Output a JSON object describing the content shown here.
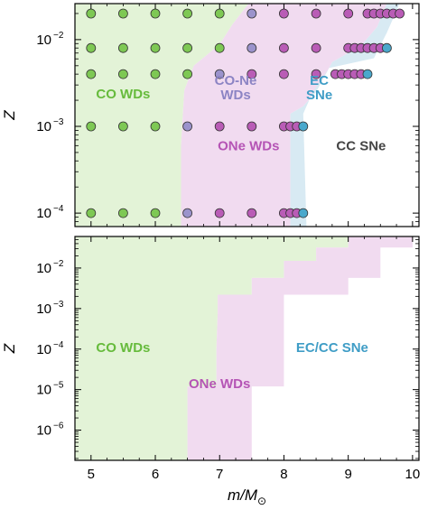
{
  "chart_data": [
    {
      "type": "scatter",
      "panel": "top",
      "ylabel": "Z",
      "yscale": "log",
      "xlim": [
        4.75,
        10.1
      ],
      "ylim": [
        7e-05,
        0.026
      ],
      "xticks": [
        5,
        6,
        7,
        8,
        9,
        10
      ],
      "yticks": [
        {
          "value": 0.0001,
          "base": "10",
          "exp": "−4"
        },
        {
          "value": 0.001,
          "base": "10",
          "exp": "−3"
        },
        {
          "value": 0.01,
          "base": "10",
          "exp": "−2"
        }
      ],
      "colors": {
        "co": "#7ec854",
        "cone": "#9b93cc",
        "one": "#b95cb6",
        "ec": "#4aa8cc",
        "co_region": "#e3f3d7",
        "one_region": "#f1dbf0",
        "ec_region": "#d8eaf3"
      },
      "regions": [
        {
          "key": "co",
          "label": "CO WDs",
          "color": "#66bb3c",
          "polygon": [
            [
              4.75,
              7e-05
            ],
            [
              6.4,
              7e-05
            ],
            [
              6.4,
              0.0006
            ],
            [
              6.45,
              0.0026
            ],
            [
              6.6,
              0.005
            ],
            [
              7.0,
              0.0088
            ],
            [
              7.2,
              0.015
            ],
            [
              7.45,
              0.026
            ],
            [
              4.75,
              0.026
            ]
          ]
        },
        {
          "key": "one",
          "label": "ONe WDs",
          "color": "#b554b5",
          "polygon": [
            [
              6.4,
              7e-05
            ],
            [
              8.1,
              7e-05
            ],
            [
              8.1,
              0.0014
            ],
            [
              8.3,
              0.0017
            ],
            [
              8.5,
              0.0025
            ],
            [
              8.75,
              0.0055
            ],
            [
              9.2,
              0.0085
            ],
            [
              9.45,
              0.014
            ],
            [
              9.6,
              0.026
            ],
            [
              7.45,
              0.026
            ],
            [
              7.2,
              0.015
            ],
            [
              7.0,
              0.0088
            ],
            [
              6.6,
              0.005
            ],
            [
              6.45,
              0.0026
            ],
            [
              6.4,
              0.0006
            ]
          ]
        },
        {
          "key": "ec",
          "label": "EC SNe",
          "color": "#3f9dc6",
          "polygon": [
            [
              8.1,
              7e-05
            ],
            [
              8.35,
              7e-05
            ],
            [
              8.3,
              0.0014
            ],
            [
              8.45,
              0.0025
            ],
            [
              8.7,
              0.0047
            ],
            [
              9.4,
              0.0061
            ],
            [
              9.6,
              0.012
            ],
            [
              9.8,
              0.026
            ],
            [
              9.6,
              0.026
            ],
            [
              9.45,
              0.014
            ],
            [
              9.2,
              0.0085
            ],
            [
              8.75,
              0.0055
            ],
            [
              8.5,
              0.0025
            ],
            [
              8.3,
              0.0017
            ],
            [
              8.1,
              0.0014
            ]
          ]
        }
      ],
      "labels": [
        {
          "text": "CO WDs",
          "color": "#66bb3c",
          "x": 5.5,
          "y": 0.0021
        },
        {
          "text": "CO-Ne",
          "color": "#8c84c4",
          "x": 7.25,
          "y": 0.003
        },
        {
          "text": "WDs",
          "color": "#8c84c4",
          "x": 7.25,
          "y": 0.00205
        },
        {
          "text": "ONe WDs",
          "color": "#b554b5",
          "x": 7.45,
          "y": 0.00053
        },
        {
          "text": "EC",
          "color": "#3f9dc6",
          "x": 8.55,
          "y": 0.003
        },
        {
          "text": "SNe",
          "color": "#3f9dc6",
          "x": 8.55,
          "y": 0.00205
        },
        {
          "text": "CC SNe",
          "color": "#444444",
          "x": 9.2,
          "y": 0.00053
        }
      ],
      "points": [
        {
          "y": 0.0001,
          "items": [
            [
              5.0,
              "co"
            ],
            [
              5.5,
              "co"
            ],
            [
              6.0,
              "co"
            ],
            [
              6.5,
              "cone"
            ],
            [
              7.0,
              "one"
            ],
            [
              7.5,
              "one"
            ],
            [
              8.0,
              "one"
            ],
            [
              8.1,
              "one"
            ],
            [
              8.2,
              "one"
            ],
            [
              8.3,
              "ec"
            ]
          ]
        },
        {
          "y": 0.001,
          "items": [
            [
              5.0,
              "co"
            ],
            [
              5.5,
              "co"
            ],
            [
              6.0,
              "co"
            ],
            [
              6.5,
              "cone"
            ],
            [
              7.0,
              "one"
            ],
            [
              7.5,
              "one"
            ],
            [
              8.0,
              "one"
            ],
            [
              8.1,
              "one"
            ],
            [
              8.2,
              "one"
            ],
            [
              8.3,
              "ec"
            ]
          ]
        },
        {
          "y": 0.004,
          "items": [
            [
              5.0,
              "co"
            ],
            [
              5.5,
              "co"
            ],
            [
              6.0,
              "co"
            ],
            [
              6.5,
              "co"
            ],
            [
              7.0,
              "cone"
            ],
            [
              7.5,
              "one"
            ],
            [
              8.0,
              "one"
            ],
            [
              8.5,
              "one"
            ],
            [
              8.8,
              "one"
            ],
            [
              8.9,
              "one"
            ],
            [
              9.0,
              "one"
            ],
            [
              9.1,
              "one"
            ],
            [
              9.2,
              "one"
            ],
            [
              9.3,
              "ec"
            ]
          ]
        },
        {
          "y": 0.008,
          "items": [
            [
              5.0,
              "co"
            ],
            [
              5.5,
              "co"
            ],
            [
              6.0,
              "co"
            ],
            [
              6.5,
              "co"
            ],
            [
              7.0,
              "co"
            ],
            [
              7.5,
              "cone"
            ],
            [
              8.0,
              "one"
            ],
            [
              8.5,
              "one"
            ],
            [
              9.0,
              "one"
            ],
            [
              9.1,
              "one"
            ],
            [
              9.2,
              "one"
            ],
            [
              9.3,
              "one"
            ],
            [
              9.4,
              "one"
            ],
            [
              9.5,
              "one"
            ],
            [
              9.6,
              "ec"
            ]
          ]
        },
        {
          "y": 0.02,
          "items": [
            [
              5.0,
              "co"
            ],
            [
              5.5,
              "co"
            ],
            [
              6.0,
              "co"
            ],
            [
              6.5,
              "co"
            ],
            [
              7.0,
              "co"
            ],
            [
              7.5,
              "cone"
            ],
            [
              8.0,
              "one"
            ],
            [
              8.5,
              "one"
            ],
            [
              9.0,
              "one"
            ],
            [
              9.3,
              "one"
            ],
            [
              9.4,
              "one"
            ],
            [
              9.5,
              "one"
            ],
            [
              9.6,
              "one"
            ],
            [
              9.7,
              "one"
            ],
            [
              9.8,
              "one"
            ]
          ]
        }
      ]
    },
    {
      "type": "area",
      "panel": "bottom",
      "xlabel": "m/M",
      "xlabel_sub": "⊙",
      "ylabel": "Z",
      "yscale": "log",
      "xlim": [
        4.75,
        10.1
      ],
      "ylim": [
        1.8e-07,
        0.06
      ],
      "xticks": [
        5,
        6,
        7,
        8,
        9,
        10
      ],
      "yticks": [
        {
          "value": 1e-06,
          "base": "10",
          "exp": "−6"
        },
        {
          "value": 1e-05,
          "base": "10",
          "exp": "−5"
        },
        {
          "value": 0.0001,
          "base": "10",
          "exp": "−4"
        },
        {
          "value": 0.001,
          "base": "10",
          "exp": "−3"
        },
        {
          "value": 0.01,
          "base": "10",
          "exp": "−2"
        }
      ],
      "regions": [
        {
          "key": "co",
          "label": "CO WDs",
          "color": "#e3f3d7",
          "polygon": [
            [
              4.75,
              1.8e-07
            ],
            [
              6.5,
              1.8e-07
            ],
            [
              6.5,
              1.2e-05
            ],
            [
              6.95,
              1.2e-05
            ],
            [
              6.95,
              0.00011
            ],
            [
              6.97,
              0.0008
            ],
            [
              6.97,
              0.0022
            ],
            [
              7.5,
              0.0022
            ],
            [
              7.5,
              0.0057
            ],
            [
              8.0,
              0.0057
            ],
            [
              8.0,
              0.015
            ],
            [
              8.5,
              0.015
            ],
            [
              8.5,
              0.032
            ],
            [
              9.0,
              0.032
            ],
            [
              9.0,
              0.06
            ],
            [
              4.75,
              0.06
            ]
          ]
        },
        {
          "key": "one",
          "label": "ONe WDs",
          "color": "#f1dbf0",
          "polygon": [
            [
              6.5,
              1.8e-07
            ],
            [
              7.5,
              1.8e-07
            ],
            [
              7.5,
              1.2e-05
            ],
            [
              8.0,
              1.2e-05
            ],
            [
              8.0,
              0.00011
            ],
            [
              8.0,
              0.0022
            ],
            [
              9.0,
              0.0022
            ],
            [
              9.0,
              0.0057
            ],
            [
              9.5,
              0.0057
            ],
            [
              9.5,
              0.015
            ],
            [
              9.5,
              0.032
            ],
            [
              10.0,
              0.032
            ],
            [
              10.0,
              0.06
            ],
            [
              9.0,
              0.06
            ],
            [
              9.0,
              0.032
            ],
            [
              8.5,
              0.032
            ],
            [
              8.5,
              0.015
            ],
            [
              8.0,
              0.015
            ],
            [
              8.0,
              0.0057
            ],
            [
              7.5,
              0.0057
            ],
            [
              7.5,
              0.0022
            ],
            [
              6.97,
              0.0022
            ],
            [
              6.97,
              0.0008
            ],
            [
              6.95,
              0.00011
            ],
            [
              6.95,
              1.2e-05
            ],
            [
              6.5,
              1.2e-05
            ]
          ]
        }
      ],
      "labels": [
        {
          "text": "CO WDs",
          "color": "#66bb3c",
          "x": 5.5,
          "y": 8.5e-05
        },
        {
          "text": "ONe WDs",
          "color": "#b554b5",
          "x": 7.0,
          "y": 1.1e-05
        },
        {
          "text": "EC/CC SNe",
          "color": "#3f9dc6",
          "x": 8.75,
          "y": 8.5e-05
        }
      ]
    }
  ]
}
